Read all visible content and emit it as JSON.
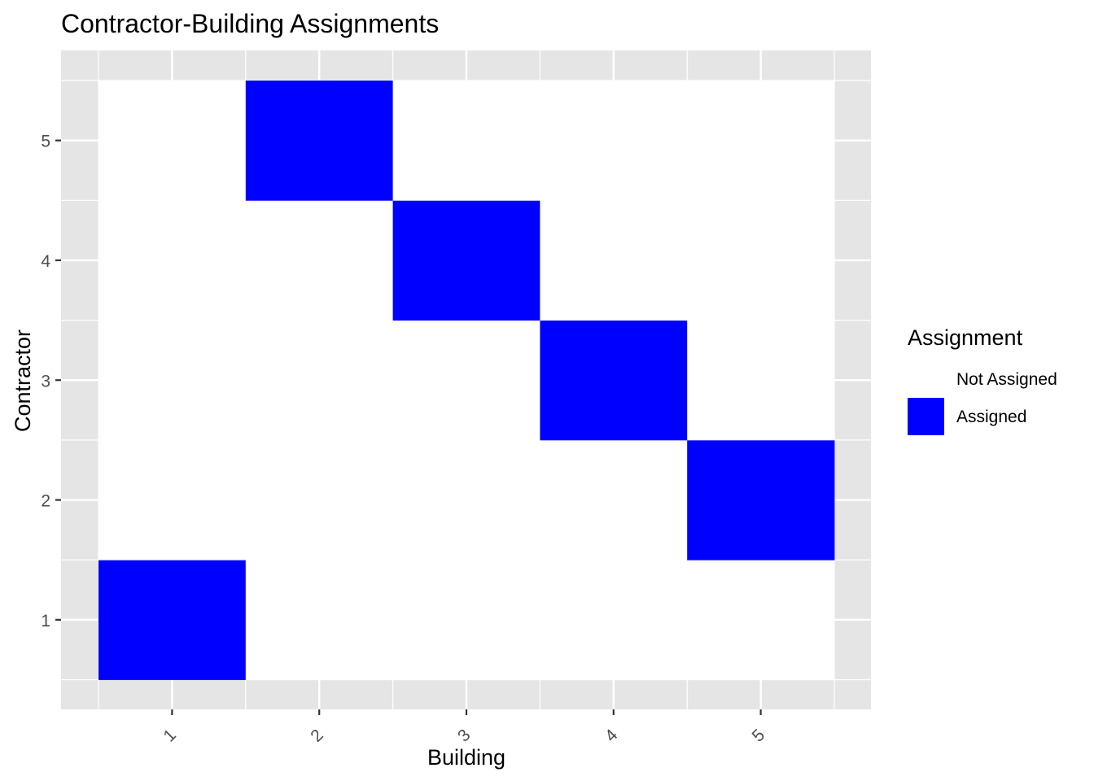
{
  "chart_data": {
    "type": "heatmap",
    "title": "Contractor-Building Assignments",
    "xlabel": "Building",
    "ylabel": "Contractor",
    "x_categories": [
      "1",
      "2",
      "3",
      "4",
      "5"
    ],
    "y_categories": [
      "1",
      "2",
      "3",
      "4",
      "5"
    ],
    "x_tick_rotation_deg": -45,
    "grid": true,
    "legend_position": "right",
    "legend": {
      "title": "Assignment",
      "entries": [
        {
          "label": "Not Assigned",
          "color": "#ffffff"
        },
        {
          "label": "Assigned",
          "color": "#0000ff"
        }
      ]
    },
    "cells": [
      {
        "building": 1,
        "contractor": 1,
        "value": "Assigned"
      },
      {
        "building": 2,
        "contractor": 1,
        "value": "Not Assigned"
      },
      {
        "building": 3,
        "contractor": 1,
        "value": "Not Assigned"
      },
      {
        "building": 4,
        "contractor": 1,
        "value": "Not Assigned"
      },
      {
        "building": 5,
        "contractor": 1,
        "value": "Not Assigned"
      },
      {
        "building": 1,
        "contractor": 2,
        "value": "Not Assigned"
      },
      {
        "building": 2,
        "contractor": 2,
        "value": "Not Assigned"
      },
      {
        "building": 3,
        "contractor": 2,
        "value": "Not Assigned"
      },
      {
        "building": 4,
        "contractor": 2,
        "value": "Not Assigned"
      },
      {
        "building": 5,
        "contractor": 2,
        "value": "Assigned"
      },
      {
        "building": 1,
        "contractor": 3,
        "value": "Not Assigned"
      },
      {
        "building": 2,
        "contractor": 3,
        "value": "Not Assigned"
      },
      {
        "building": 3,
        "contractor": 3,
        "value": "Not Assigned"
      },
      {
        "building": 4,
        "contractor": 3,
        "value": "Assigned"
      },
      {
        "building": 5,
        "contractor": 3,
        "value": "Not Assigned"
      },
      {
        "building": 1,
        "contractor": 4,
        "value": "Not Assigned"
      },
      {
        "building": 2,
        "contractor": 4,
        "value": "Not Assigned"
      },
      {
        "building": 3,
        "contractor": 4,
        "value": "Assigned"
      },
      {
        "building": 4,
        "contractor": 4,
        "value": "Not Assigned"
      },
      {
        "building": 5,
        "contractor": 4,
        "value": "Not Assigned"
      },
      {
        "building": 1,
        "contractor": 5,
        "value": "Not Assigned"
      },
      {
        "building": 2,
        "contractor": 5,
        "value": "Assigned"
      },
      {
        "building": 3,
        "contractor": 5,
        "value": "Not Assigned"
      },
      {
        "building": 4,
        "contractor": 5,
        "value": "Not Assigned"
      },
      {
        "building": 5,
        "contractor": 5,
        "value": "Not Assigned"
      }
    ],
    "colors": {
      "panel_background": "#e5e5e5",
      "grid_line": "#ffffff",
      "tick_label": "#4d4d4d",
      "tick_mark": "#333333"
    }
  }
}
